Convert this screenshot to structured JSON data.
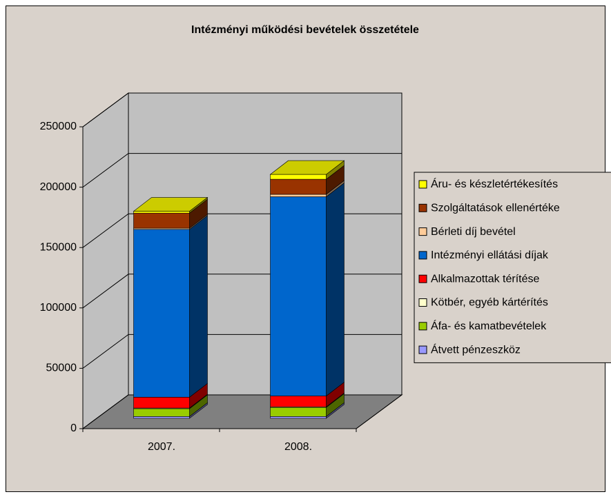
{
  "chart_data": {
    "type": "bar3d_stacked",
    "title": "Intézményi működési bevételek összetétele",
    "categories": [
      "2007.",
      "2008."
    ],
    "series": [
      {
        "name": "Átvett pénzeszköz",
        "color": "#9999ff",
        "values": [
          1500,
          1500
        ]
      },
      {
        "name": "Áfa- és kamatbevételek",
        "color": "#99cc00",
        "values": [
          6500,
          7500
        ]
      },
      {
        "name": "Kötbér, egyéb kártérítés",
        "color": "#ffffcc",
        "values": [
          500,
          500
        ]
      },
      {
        "name": "Alkalmazottak térítése",
        "color": "#ff0000",
        "values": [
          9000,
          9000
        ]
      },
      {
        "name": "Intézményi ellátási díjak",
        "color": "#0066cc",
        "values": [
          139000,
          165000
        ]
      },
      {
        "name": "Bérleti díj bevétel",
        "color": "#ffcc99",
        "values": [
          1000,
          2000
        ]
      },
      {
        "name": "Szolgáltatások ellenértéke",
        "color": "#993300",
        "values": [
          12500,
          12500
        ]
      },
      {
        "name": "Áru- és készletértékesítés",
        "color": "#ffff00",
        "values": [
          1500,
          4000
        ]
      }
    ],
    "ylim": [
      0,
      250000
    ],
    "yticks": [
      0,
      50000,
      100000,
      150000,
      200000,
      250000
    ],
    "grid": true,
    "legend": "right"
  }
}
